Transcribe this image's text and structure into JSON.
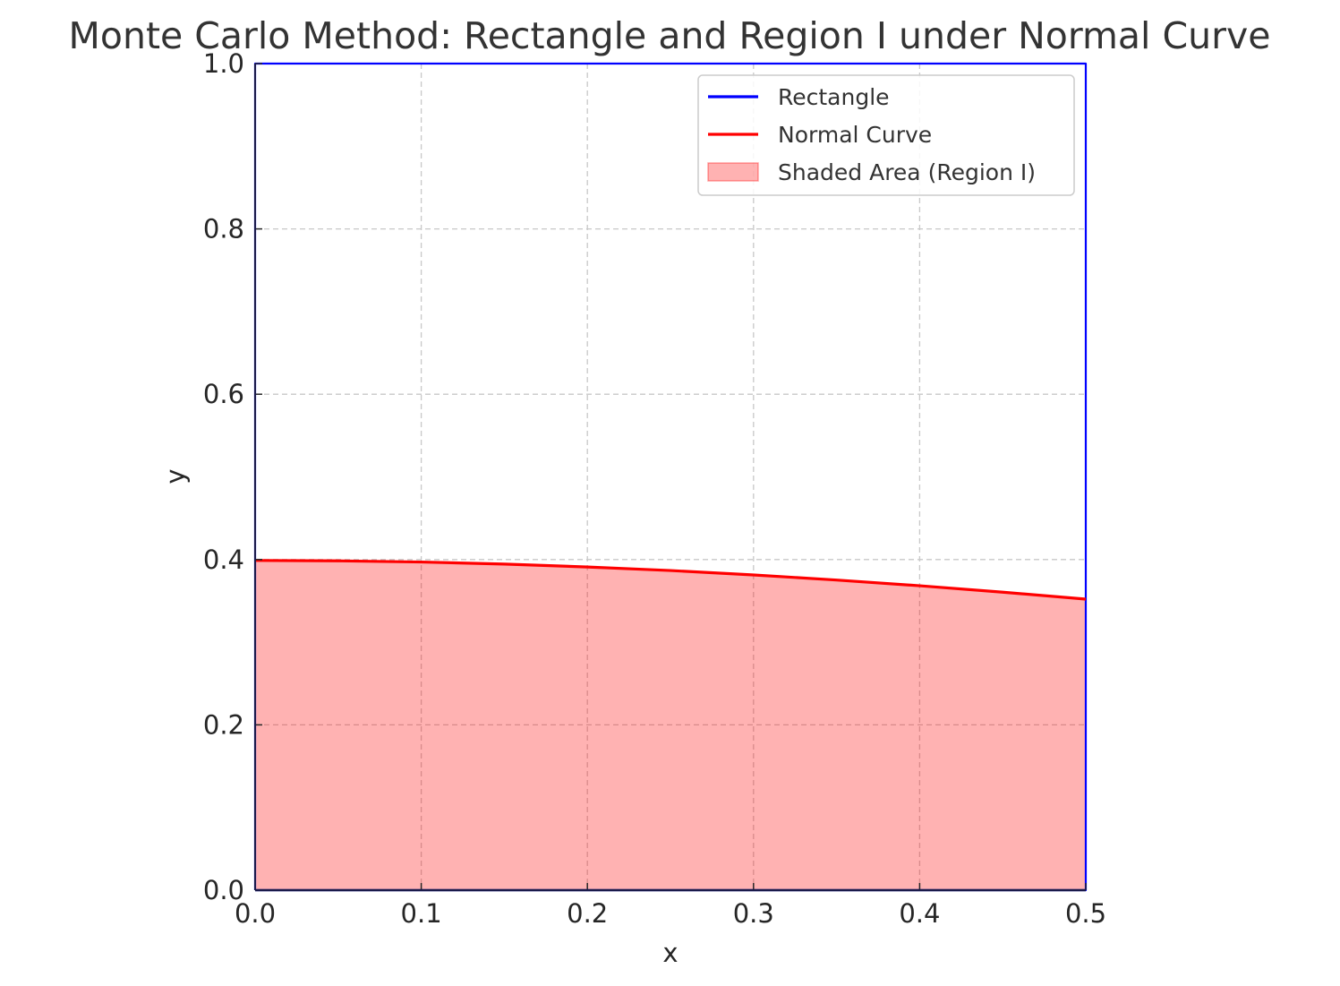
{
  "chart_data": {
    "type": "area",
    "title": "Monte Carlo Method: Rectangle and Region I under Normal Curve",
    "xlabel": "x",
    "ylabel": "y",
    "xlim": [
      0.0,
      0.5
    ],
    "ylim": [
      0.0,
      1.0
    ],
    "x_ticks": [
      "0.0",
      "0.1",
      "0.2",
      "0.3",
      "0.4",
      "0.5"
    ],
    "y_ticks": [
      "0.0",
      "0.2",
      "0.4",
      "0.6",
      "0.8",
      "1.0"
    ],
    "grid": true,
    "legend_position": "top-right",
    "series": [
      {
        "name": "Rectangle",
        "kind": "line",
        "color": "#0000ff",
        "x": [
          0.0,
          0.5,
          0.5,
          0.0,
          0.0
        ],
        "y": [
          0.0,
          0.0,
          1.0,
          1.0,
          0.0
        ]
      },
      {
        "name": "Normal Curve",
        "kind": "line",
        "color": "#ff0000",
        "x": [
          0.0,
          0.05,
          0.1,
          0.15,
          0.2,
          0.25,
          0.3,
          0.35,
          0.4,
          0.45,
          0.5
        ],
        "y": [
          0.3989,
          0.3984,
          0.397,
          0.3945,
          0.391,
          0.3867,
          0.3814,
          0.3752,
          0.3683,
          0.3605,
          0.3521
        ]
      },
      {
        "name": "Shaded Area (Region I)",
        "kind": "fill",
        "color": "#ff0000",
        "opacity": 0.3,
        "x": [
          0.0,
          0.05,
          0.1,
          0.15,
          0.2,
          0.25,
          0.3,
          0.35,
          0.4,
          0.45,
          0.5
        ],
        "y": [
          0.3989,
          0.3984,
          0.397,
          0.3945,
          0.391,
          0.3867,
          0.3814,
          0.3752,
          0.3683,
          0.3605,
          0.3521
        ]
      }
    ]
  }
}
